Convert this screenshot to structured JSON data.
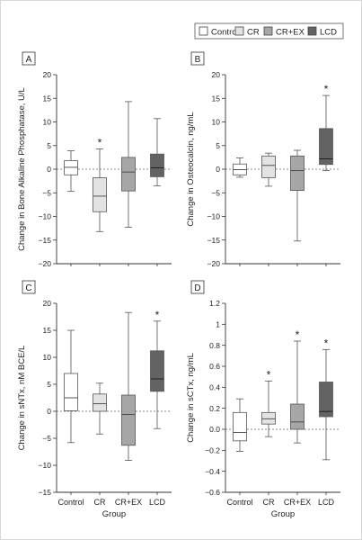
{
  "legend": [
    {
      "label": "Control",
      "color": "#ffffff"
    },
    {
      "label": "CR",
      "color": "#e3e3e3"
    },
    {
      "label": "CR+EX",
      "color": "#a6a6a6"
    },
    {
      "label": "LCD",
      "color": "#636363"
    }
  ],
  "chart_data": [
    {
      "panel": "A",
      "type": "box",
      "ylabel": "Change in Bone Alkaline Phosphatase, U/L",
      "ylim": [
        -20,
        20
      ],
      "yticks": [
        -20,
        -15,
        -10,
        -5,
        0,
        5,
        10,
        15,
        20
      ],
      "categories": [
        "Control",
        "CR",
        "CR+EX",
        "LCD"
      ],
      "boxes": [
        {
          "min": -4.7,
          "q1": -1.2,
          "median": 0.4,
          "q3": 1.8,
          "max": 3.9
        },
        {
          "min": -13.2,
          "q1": -9.0,
          "median": -5.7,
          "q3": -1.8,
          "max": 4.3
        },
        {
          "min": -12.3,
          "q1": -4.6,
          "median": -0.6,
          "q3": 2.5,
          "max": 14.3
        },
        {
          "min": -3.5,
          "q1": -1.6,
          "median": 0.3,
          "q3": 3.2,
          "max": 10.7
        }
      ],
      "significant": [
        false,
        true,
        false,
        false
      ],
      "reference_line": 0,
      "show_xaxis_labels": false
    },
    {
      "panel": "B",
      "type": "box",
      "ylabel": "Change in Osteocalcin, ng/mL",
      "ylim": [
        -20,
        20
      ],
      "yticks": [
        -20,
        -15,
        -10,
        -5,
        0,
        5,
        10,
        15,
        20
      ],
      "categories": [
        "Control",
        "CR",
        "CR+EX",
        "LCD"
      ],
      "boxes": [
        {
          "min": -1.7,
          "q1": -1.2,
          "median": -0.1,
          "q3": 1.1,
          "max": 2.4
        },
        {
          "min": -3.6,
          "q1": -1.8,
          "median": 0.8,
          "q3": 2.8,
          "max": 3.4
        },
        {
          "min": -15.2,
          "q1": -4.5,
          "median": -0.3,
          "q3": 2.8,
          "max": 4.0
        },
        {
          "min": -0.3,
          "q1": 1.0,
          "median": 2.2,
          "q3": 8.6,
          "max": 15.6
        }
      ],
      "significant": [
        false,
        false,
        false,
        true
      ],
      "reference_line": 0,
      "show_xaxis_labels": false
    },
    {
      "panel": "C",
      "type": "box",
      "ylabel": "Change in sNTx, nM BCE/L",
      "ylim": [
        -15,
        20
      ],
      "yticks": [
        -15,
        -10,
        -5,
        0,
        5,
        10,
        15,
        20
      ],
      "categories": [
        "Control",
        "CR",
        "CR+EX",
        "LCD"
      ],
      "boxes": [
        {
          "min": -5.8,
          "q1": 0.1,
          "median": 2.5,
          "q3": 7.0,
          "max": 15.0
        },
        {
          "min": -4.2,
          "q1": 0.0,
          "median": 1.4,
          "q3": 3.2,
          "max": 5.2
        },
        {
          "min": -9.1,
          "q1": -6.3,
          "median": -0.6,
          "q3": 3.0,
          "max": 18.3
        },
        {
          "min": -3.2,
          "q1": 3.7,
          "median": 6.0,
          "q3": 11.2,
          "max": 16.7
        }
      ],
      "significant": [
        false,
        false,
        false,
        true
      ],
      "reference_line": 0,
      "show_xaxis_labels": true,
      "xlabel": "Group"
    },
    {
      "panel": "D",
      "type": "box",
      "ylabel": "Change in sCTx, ng/mL",
      "ylim": [
        -0.6,
        1.2
      ],
      "yticks": [
        -0.6,
        -0.4,
        -0.2,
        0.0,
        0.2,
        0.4,
        0.6,
        0.8,
        1.0,
        1.2
      ],
      "categories": [
        "Control",
        "CR",
        "CR+EX",
        "LCD"
      ],
      "boxes": [
        {
          "min": -0.21,
          "q1": -0.11,
          "median": -0.03,
          "q3": 0.16,
          "max": 0.29
        },
        {
          "min": -0.07,
          "q1": 0.05,
          "median": 0.1,
          "q3": 0.16,
          "max": 0.46
        },
        {
          "min": -0.13,
          "q1": 0.0,
          "median": 0.07,
          "q3": 0.24,
          "max": 0.84
        },
        {
          "min": -0.29,
          "q1": 0.12,
          "median": 0.17,
          "q3": 0.45,
          "max": 0.76
        }
      ],
      "significant": [
        false,
        true,
        true,
        true
      ],
      "reference_line": 0,
      "show_xaxis_labels": true,
      "xlabel": "Group"
    }
  ]
}
